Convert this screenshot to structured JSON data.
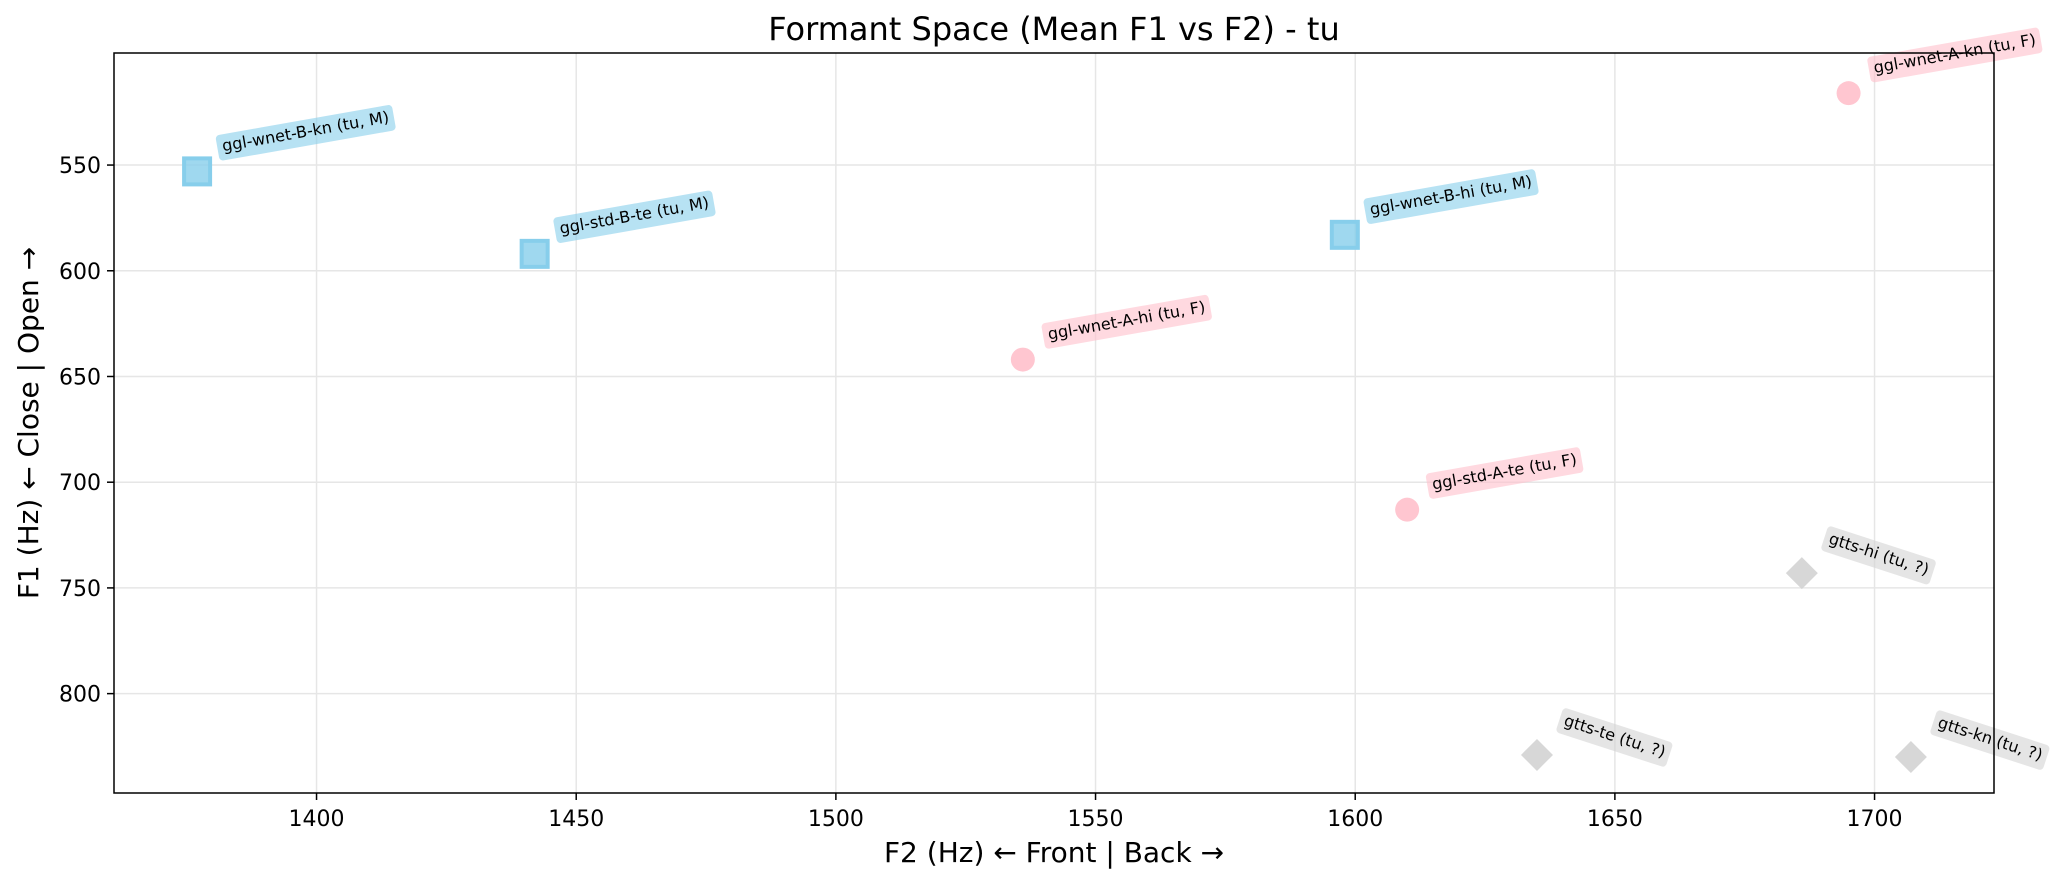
{
  "chart_data": {
    "type": "scatter",
    "title": "Formant Space (Mean F1 vs F2) - tu",
    "xlabel": "F2 (Hz) ← Front | Back →",
    "ylabel": "F1 (Hz) ← Close | Open →",
    "xlim": [
      1361,
      1723
    ],
    "ylim": [
      847,
      497
    ],
    "y_inverted": true,
    "grid": true,
    "xticks": [
      1400,
      1450,
      1500,
      1550,
      1600,
      1650,
      1700
    ],
    "yticks": [
      550,
      600,
      650,
      700,
      750,
      800
    ],
    "points": [
      {
        "label": "ggl-wnet-B-kn (tu, M)",
        "x": 1377,
        "y": 553,
        "group": "M",
        "marker": "square"
      },
      {
        "label": "ggl-std-B-te (tu, M)",
        "x": 1442,
        "y": 592,
        "group": "M",
        "marker": "square"
      },
      {
        "label": "ggl-wnet-B-hi (tu, M)",
        "x": 1598,
        "y": 583,
        "group": "M",
        "marker": "square"
      },
      {
        "label": "ggl-wnet-A-hi (tu, F)",
        "x": 1536,
        "y": 642,
        "group": "F",
        "marker": "circle"
      },
      {
        "label": "ggl-wnet-A-kn (tu, F)",
        "x": 1695,
        "y": 516,
        "group": "F",
        "marker": "circle"
      },
      {
        "label": "ggl-std-A-te (tu, F)",
        "x": 1610,
        "y": 713,
        "group": "F",
        "marker": "circle"
      },
      {
        "label": "gtts-hi (tu, ?)",
        "x": 1686,
        "y": 743,
        "group": "?",
        "marker": "diamond"
      },
      {
        "label": "gtts-te (tu, ?)",
        "x": 1635,
        "y": 829,
        "group": "?",
        "marker": "diamond"
      },
      {
        "label": "gtts-kn (tu, ?)",
        "x": 1707,
        "y": 830,
        "group": "?",
        "marker": "diamond"
      }
    ],
    "colors": {
      "M": "#87ceeb",
      "F": "#ffc0cb",
      "?": "#d3d3d3"
    }
  }
}
